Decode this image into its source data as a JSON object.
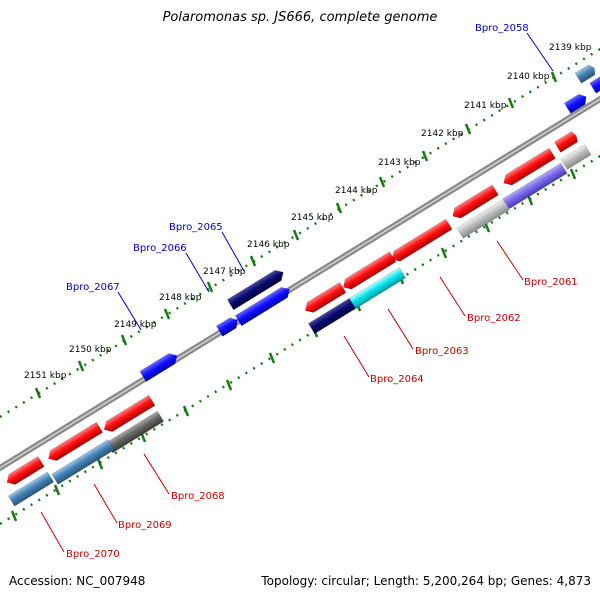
{
  "title": "Polaromonas sp. JS666, complete genome",
  "accession": "Accession: NC_007948",
  "summary": "Topology: circular; Length: 5,200,264 bp; Genes: 4,873",
  "colors": {
    "backbone": "#8a8a8a",
    "tick": "#1a7a1a",
    "label_forward": "#0000cc",
    "label_reverse": "#cc0000"
  },
  "ticks": [
    "2139 kbp",
    "2140 kbp",
    "2141 kbp",
    "2142 kbp",
    "2143 kbp",
    "2144 kbp",
    "2145 kbp",
    "2146 kbp",
    "2147 kbp",
    "2148 kbp",
    "2149 kbp",
    "2150 kbp",
    "2151 kbp"
  ],
  "forward_labels": [
    "Bpro_2058",
    "Bpro_2065",
    "Bpro_2066",
    "Bpro_2067"
  ],
  "reverse_labels": [
    "Bpro_2061",
    "Bpro_2062",
    "Bpro_2063",
    "Bpro_2064",
    "Bpro_2068",
    "Bpro_2069",
    "Bpro_2070"
  ]
}
